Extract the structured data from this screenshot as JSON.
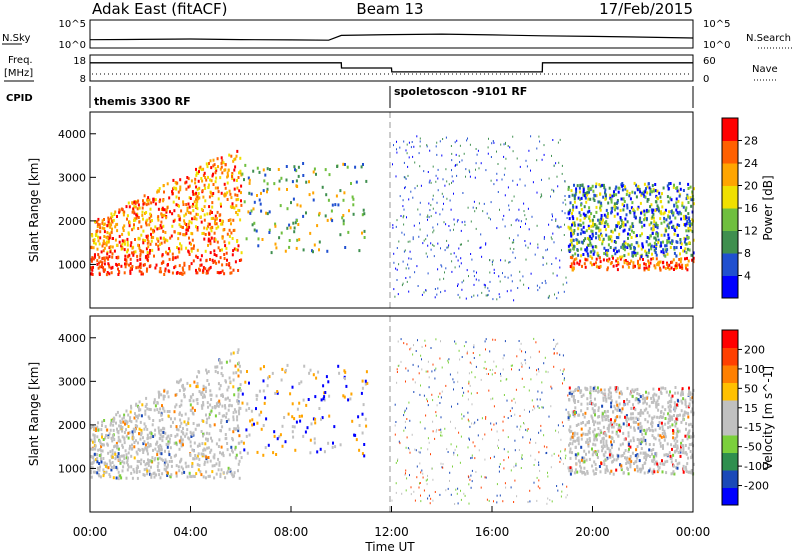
{
  "header": {
    "station": "Adak East (fitACF)",
    "beam": "Beam 13",
    "date": "17/Feb/2015"
  },
  "strip_left_labels": {
    "nsky": "N.Sky",
    "freq_line1": "Freq.",
    "freq_line2": "[MHz]",
    "cpid": "CPID"
  },
  "strip_right_labels": {
    "nsearch": "N.Search",
    "nave": "Nave"
  },
  "strip_ticks": {
    "noise_left": [
      "10^5",
      "10^0"
    ],
    "noise_right": [
      "10^5",
      "10^0"
    ],
    "freq_left": [
      "18",
      "8"
    ],
    "nave_right": [
      "60",
      "0"
    ]
  },
  "cpid_segments": [
    {
      "label": "themis 3300 RF",
      "start_hour": 0
    },
    {
      "label": "spoletoscon -9101 RF",
      "start_hour": 12
    }
  ],
  "colors": {
    "power": [
      "#0000ff",
      "#2050d0",
      "#3f8f4f",
      "#6fbf3f",
      "#f0e000",
      "#ffa500",
      "#ff6000",
      "#ff0000"
    ],
    "velocity": [
      "#0000ff",
      "#1a49b8",
      "#2f8f4f",
      "#7bd03c",
      "#c0c0c0",
      "#c0c0c0",
      "#ffc000",
      "#ff8000",
      "#ff4000",
      "#ff0000"
    ]
  },
  "chart_data": [
    {
      "type": "line",
      "name": "noise-strip",
      "x": [
        0,
        2,
        4,
        6,
        8,
        9.5,
        10,
        12,
        14,
        16,
        18,
        20,
        22,
        24
      ],
      "series": [
        {
          "name": "N.Sky",
          "values": [
            30,
            35,
            40,
            32,
            28,
            25,
            180,
            250,
            300,
            220,
            150,
            120,
            90,
            60
          ]
        }
      ],
      "xlim": [
        0,
        24
      ]
    },
    {
      "type": "line",
      "name": "freq-strip",
      "x": [
        0,
        10,
        10.01,
        12,
        12.01,
        18,
        18.01,
        24
      ],
      "series": [
        {
          "name": "Freq.",
          "values": [
            15,
            15,
            13,
            13,
            11.5,
            11.5,
            15,
            15
          ]
        }
      ],
      "xlim": [
        0,
        24
      ],
      "ylim": [
        8,
        18
      ]
    },
    {
      "type": "heatmap",
      "name": "power-panel",
      "ylabel": "Slant Range [km]",
      "colorbar_label": "Power [dB]",
      "colorbar_ticks": [
        "28",
        "24",
        "20",
        "16",
        "12",
        "8",
        "4"
      ],
      "ylim": [
        0,
        4500
      ],
      "yticks": [
        1000,
        2000,
        3000,
        4000
      ],
      "xlim": [
        0,
        24
      ]
    },
    {
      "type": "heatmap",
      "name": "velocity-panel",
      "ylabel": "Slant Range [km]",
      "xlabel": "Time UT",
      "colorbar_label": "Velocity [m s^-1]",
      "colorbar_ticks": [
        "200",
        "100",
        "50",
        "15",
        "-15",
        "-50",
        "-100",
        "-200"
      ],
      "ylim": [
        0,
        4500
      ],
      "yticks": [
        1000,
        2000,
        3000,
        4000
      ],
      "xticks": [
        "00:00",
        "04:00",
        "08:00",
        "12:00",
        "16:00",
        "20:00",
        "00:00"
      ],
      "xlim": [
        0,
        24
      ]
    }
  ]
}
